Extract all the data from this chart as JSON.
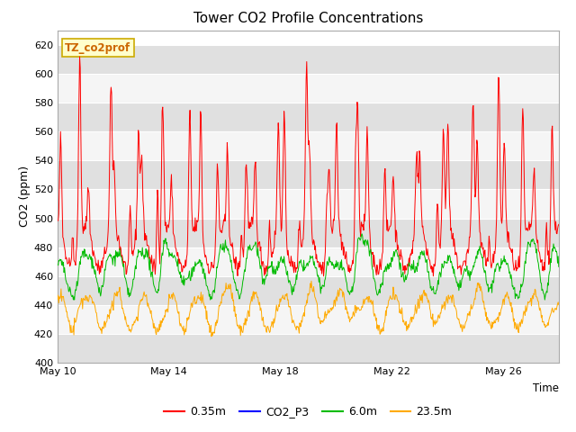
{
  "title": "Tower CO2 Profile Concentrations",
  "xlabel": "Time",
  "ylabel": "CO2 (ppm)",
  "ylim": [
    400,
    630
  ],
  "yticks": [
    400,
    420,
    440,
    460,
    480,
    500,
    520,
    540,
    560,
    580,
    600,
    620
  ],
  "x_tick_positions": [
    0,
    4,
    8,
    12,
    16
  ],
  "x_tick_labels": [
    "May 10",
    "May 14",
    "May 18",
    "May 22",
    "May 26"
  ],
  "legend_labels": [
    "0.35m",
    "CO2_P3",
    "6.0m",
    "23.5m"
  ],
  "legend_colors": [
    "#ff0000",
    "#0000ff",
    "#00bb00",
    "#ffaa00"
  ],
  "watermark_text": "TZ_co2prof",
  "watermark_bg": "#ffffcc",
  "watermark_border": "#ccaa00",
  "plot_bg": "#e8e8e8",
  "band_light": "#f5f5f5",
  "band_dark": "#e0e0e0",
  "grid_color": "#ffffff",
  "n_days": 18,
  "seed": 42
}
